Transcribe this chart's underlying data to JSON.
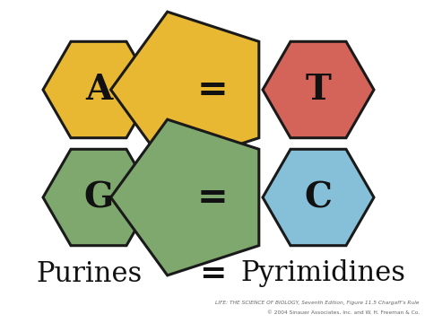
{
  "bg_color": "#ffffff",
  "purine_A_color": "#e8b832",
  "purine_G_color": "#7fa86e",
  "pyrimidine_T_color": "#d4635a",
  "pyrimidine_C_color": "#85c0d8",
  "outline_color": "#1a1a1a",
  "text_color": "#111111",
  "label_A": "A",
  "label_T": "T",
  "label_G": "G",
  "label_C": "C",
  "label_purines": "Purines",
  "label_equals": "=",
  "label_pyrimidines": "Pyrimidines",
  "caption_line1": "LIFE: THE SCIENCE OF BIOLOGY, Seventh Edition, Figure 11.5 Chargaff’s Rule",
  "caption_line2": "© 2004 Sinauer Associates, Inc. and W. H. Freeman & Co.",
  "lw": 2.2
}
